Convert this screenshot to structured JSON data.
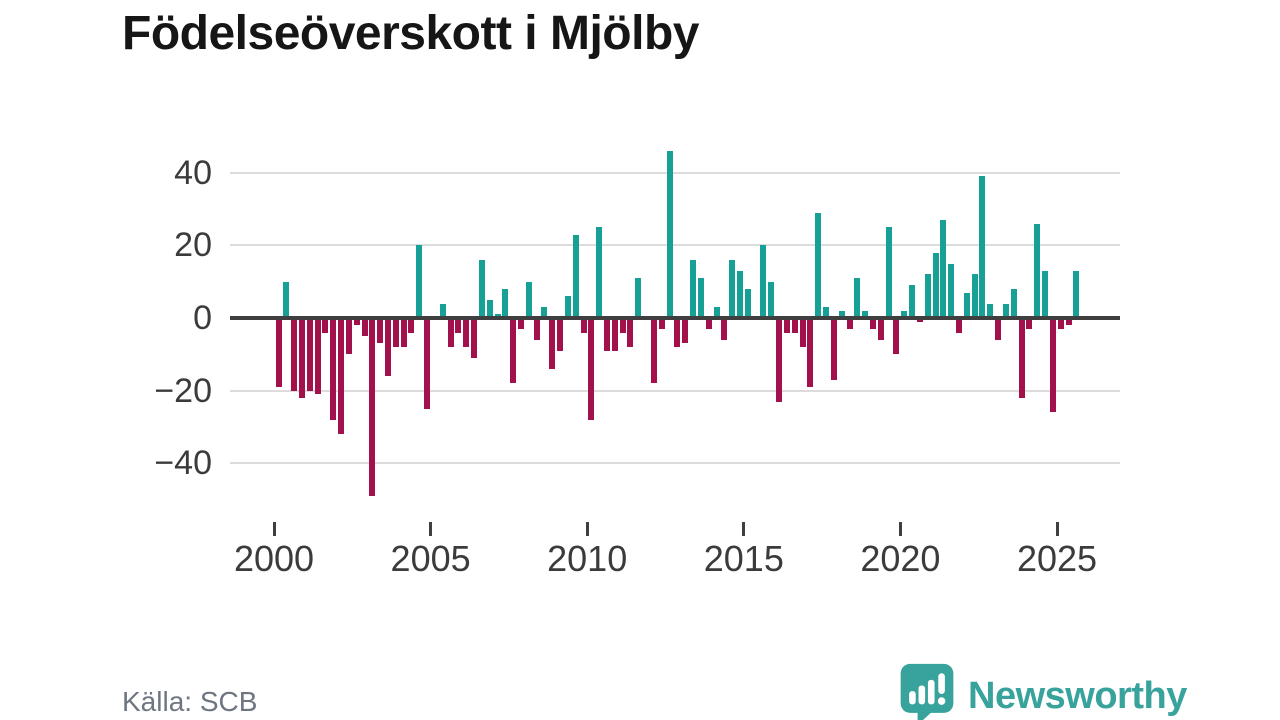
{
  "title": "Födelseöverskott i Mjölby",
  "source": "Källa: SCB",
  "logo": {
    "text": "Newsworthy"
  },
  "chart_data": {
    "type": "bar",
    "title": "Födelseöverskott i Mjölby",
    "frequency": "quarterly",
    "start": "2000-Q1",
    "end": "2025-Q3",
    "values": [
      -19,
      10,
      -20,
      -22,
      -20,
      -21,
      -4,
      -28,
      -32,
      -10,
      -2,
      -5,
      -49,
      -7,
      -16,
      -8,
      -8,
      -4,
      20,
      -25,
      0,
      4,
      -8,
      -4,
      -8,
      -11,
      16,
      5,
      1,
      8,
      -18,
      -3,
      10,
      -6,
      3,
      -14,
      -9,
      6,
      23,
      -4,
      -28,
      25,
      -9,
      -9,
      -4,
      -8,
      11,
      0,
      -18,
      -3,
      46,
      -8,
      -7,
      16,
      11,
      -3,
      3,
      -6,
      16,
      13,
      8,
      0,
      20,
      10,
      -23,
      -4,
      -4,
      -8,
      -19,
      29,
      3,
      -17,
      2,
      -3,
      11,
      2,
      -3,
      -6,
      25,
      -10,
      2,
      9,
      -1,
      12,
      18,
      27,
      15,
      -4,
      7,
      12,
      39,
      4,
      -6,
      4,
      8,
      -22,
      -3,
      26,
      13,
      -26,
      -3,
      -2,
      13
    ],
    "ylim": [
      -52,
      48
    ],
    "yticks": [
      {
        "value": 40,
        "label": "40"
      },
      {
        "value": 20,
        "label": "20"
      },
      {
        "value": 0,
        "label": "0"
      },
      {
        "value": -20,
        "label": "−20"
      },
      {
        "value": -40,
        "label": "−40"
      }
    ],
    "xticks": [
      {
        "value": 2000,
        "label": "2000"
      },
      {
        "value": 2005,
        "label": "2005"
      },
      {
        "value": 2010,
        "label": "2010"
      },
      {
        "value": 2015,
        "label": "2015"
      },
      {
        "value": 2020,
        "label": "2020"
      },
      {
        "value": 2025,
        "label": "2025"
      }
    ],
    "colors": {
      "positive": "#16a096",
      "negative": "#a3114d"
    },
    "grid": true,
    "legend": "none"
  }
}
